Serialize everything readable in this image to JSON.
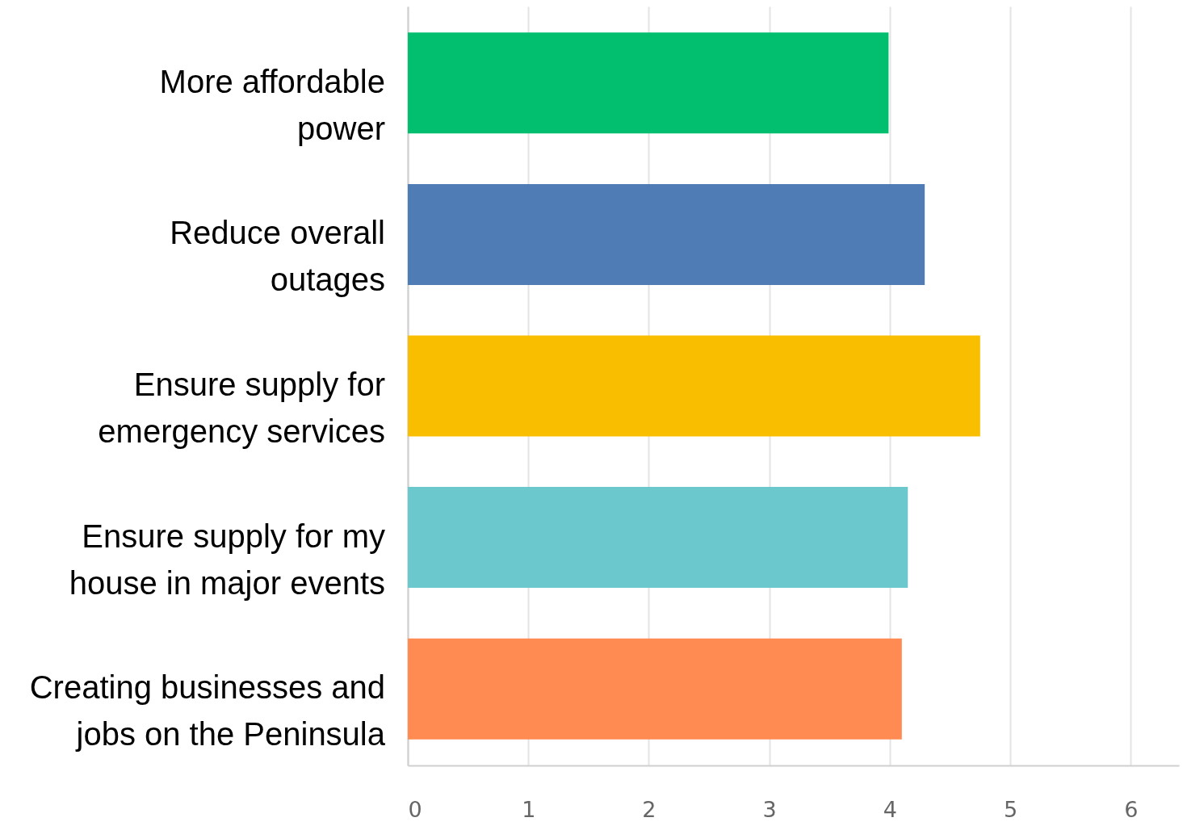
{
  "chart_data": {
    "type": "bar",
    "orientation": "horizontal",
    "categories": [
      "More affordable power",
      "Reduce overall outages",
      "Ensure supply for emergency services",
      "Ensure supply for my house in major events",
      "Creating businesses and jobs on the Peninsula"
    ],
    "values": [
      3.99,
      4.29,
      4.75,
      4.15,
      4.1
    ],
    "colors": [
      "#02bf6f",
      "#507cb6",
      "#f9be00",
      "#6bc8cd",
      "#ff8b52"
    ],
    "xlim": [
      0,
      6.4
    ],
    "xticks": [
      0,
      1,
      2,
      3,
      4,
      5,
      6
    ],
    "grid": "x"
  }
}
